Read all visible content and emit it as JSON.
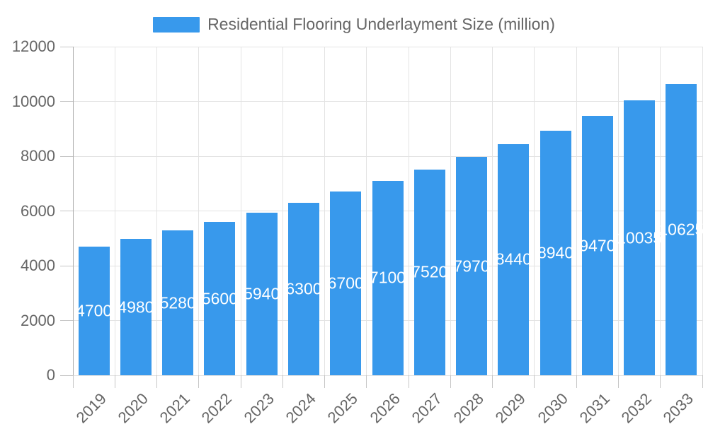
{
  "legend": {
    "label": "Residential Flooring Underlayment Size (million)"
  },
  "chart_data": {
    "type": "bar",
    "title": "Residential Flooring Underlayment Size (million)",
    "categories": [
      "2019",
      "2020",
      "2021",
      "2022",
      "2023",
      "2024",
      "2025",
      "2026",
      "2027",
      "2028",
      "2029",
      "2030",
      "2031",
      "2032",
      "2033"
    ],
    "values": [
      4700,
      4980,
      5280,
      5600,
      5940,
      6300,
      6700,
      7100,
      7520,
      7970,
      8440,
      8940,
      9470,
      10035,
      10625
    ],
    "value_labels": [
      "4700",
      "4980",
      "5280",
      "5600",
      "5940",
      "6300",
      "6700",
      "7100",
      "7520",
      "7970",
      "8440",
      "8940",
      "9470",
      "10035",
      "10625"
    ],
    "xlabel": "",
    "ylabel": "",
    "ylim": [
      0,
      12000
    ],
    "yticks": [
      0,
      2000,
      4000,
      6000,
      8000,
      10000,
      12000
    ],
    "grid": true,
    "legend_position": "top-center",
    "colors": {
      "bar": "#3899EC",
      "value_label": "#FFFFFF",
      "axis_text": "#666666",
      "gridline": "#E3E3E3",
      "axis_line": "#ADADAD",
      "tick": "#C6C6C6"
    }
  }
}
